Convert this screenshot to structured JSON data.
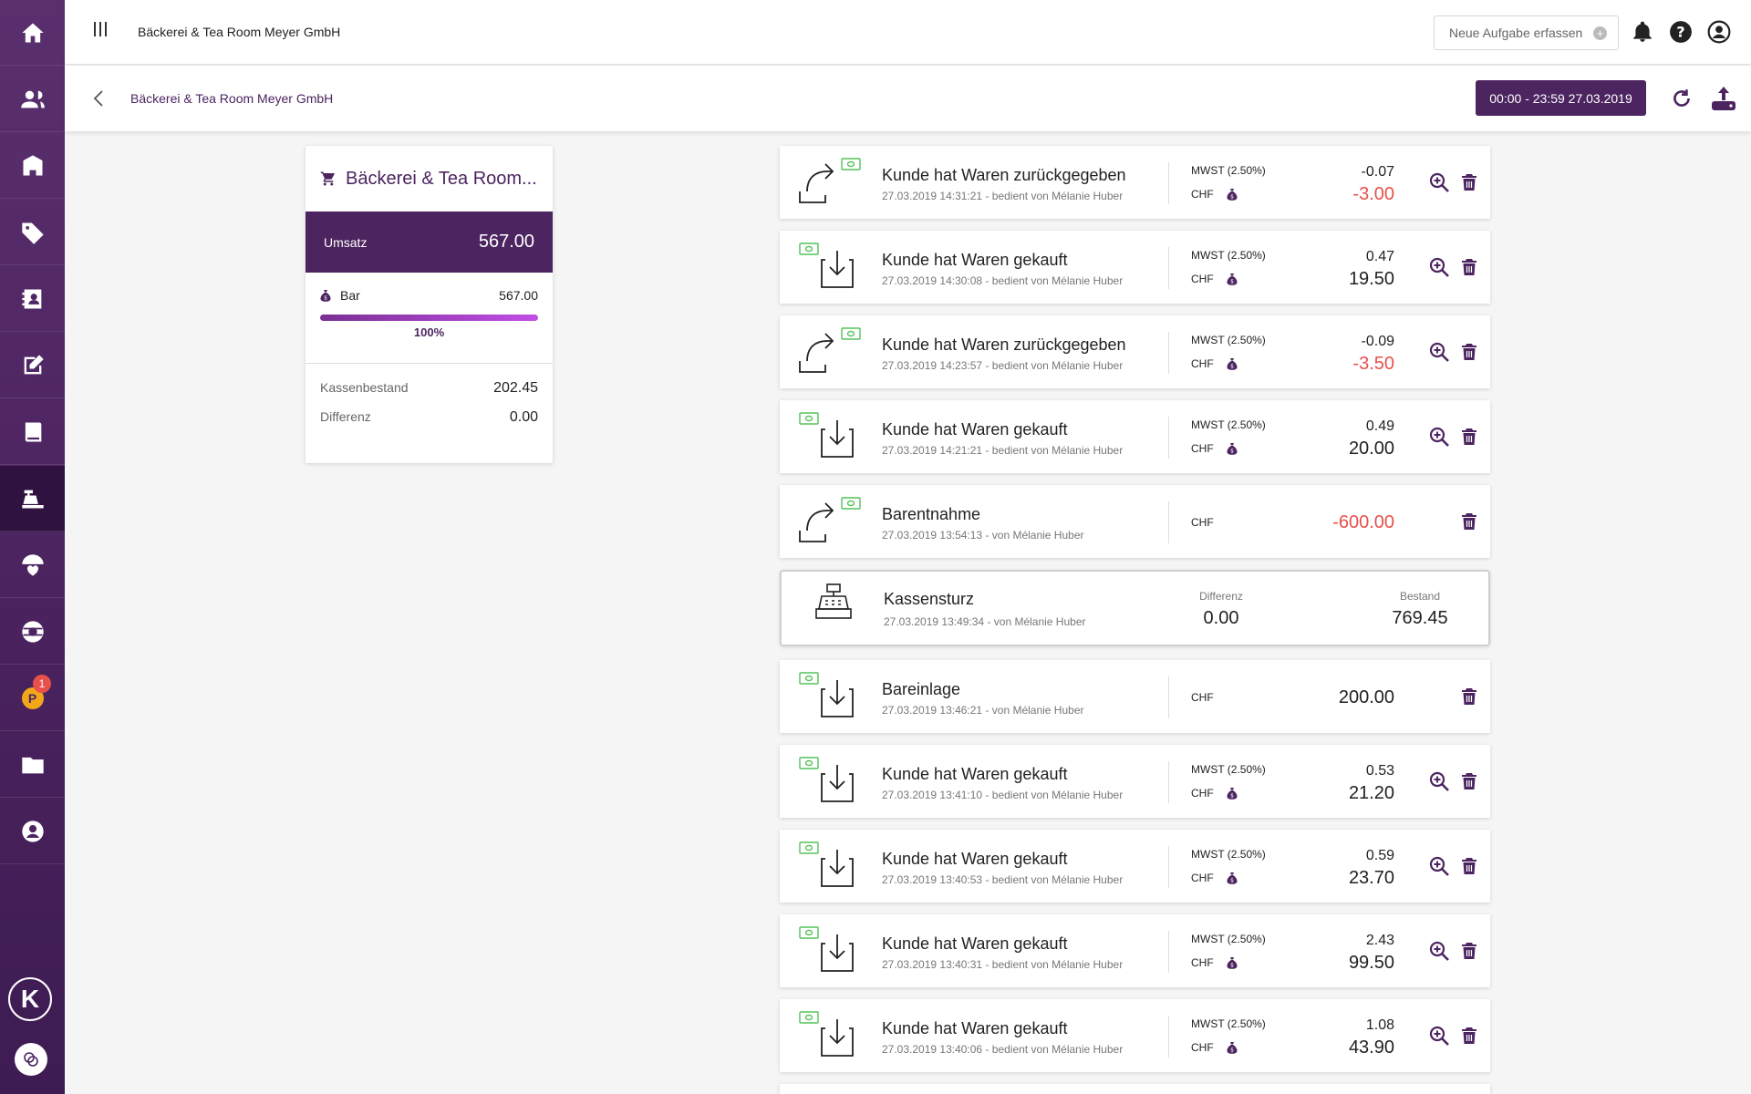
{
  "topbar": {
    "company": "Bäckerei & Tea Room Meyer GmbH",
    "task_placeholder": "Neue Aufgabe erfassen"
  },
  "sidebar": {
    "items": [
      {
        "icon": "home-icon"
      },
      {
        "icon": "users-icon"
      },
      {
        "icon": "building-icon"
      },
      {
        "icon": "tag-icon"
      },
      {
        "icon": "contacts-icon"
      },
      {
        "icon": "edit-icon"
      },
      {
        "icon": "book-icon"
      },
      {
        "icon": "cash-register-icon",
        "active": true
      },
      {
        "icon": "umbrella-heart-icon"
      },
      {
        "icon": "support-icon"
      },
      {
        "icon": "points-icon",
        "badge": "1",
        "coin": "P"
      },
      {
        "icon": "folder-icon"
      },
      {
        "icon": "account-icon"
      }
    ],
    "logo": "K"
  },
  "subbar": {
    "breadcrumb": "Bäckerei & Tea Room Meyer GmbH",
    "date_range": "00:00 - 23:59 27.03.2019"
  },
  "summary": {
    "title": "Bäckerei & Tea Room...",
    "umsatz_label": "Umsatz",
    "umsatz_value": "567.00",
    "bar_label": "Bar",
    "bar_value": "567.00",
    "bar_fill": 1.0,
    "bar_percent": "100%",
    "kassenbestand_label": "Kassenbestand",
    "kassenbestand_value": "202.45",
    "differenz_label": "Differenz",
    "differenz_value": "0.00"
  },
  "transactions": [
    {
      "kind": "return",
      "title": "Kunde hat Waren zurückgegeben",
      "sub": "27.03.2019 14:31:21 - bedient von Mélanie Huber",
      "mwst": "MWST (2.50%)",
      "currency": "CHF",
      "tax": "-0.07",
      "amount": "-3.00",
      "negative": true,
      "zoom": true
    },
    {
      "kind": "purchase",
      "title": "Kunde hat Waren gekauft",
      "sub": "27.03.2019 14:30:08 - bedient von Mélanie Huber",
      "mwst": "MWST (2.50%)",
      "currency": "CHF",
      "tax": "0.47",
      "amount": "19.50",
      "negative": false,
      "zoom": true
    },
    {
      "kind": "return",
      "title": "Kunde hat Waren zurückgegeben",
      "sub": "27.03.2019 14:23:57 - bedient von Mélanie Huber",
      "mwst": "MWST (2.50%)",
      "currency": "CHF",
      "tax": "-0.09",
      "amount": "-3.50",
      "negative": true,
      "zoom": true
    },
    {
      "kind": "purchase",
      "title": "Kunde hat Waren gekauft",
      "sub": "27.03.2019 14:21:21 - bedient von Mélanie Huber",
      "mwst": "MWST (2.50%)",
      "currency": "CHF",
      "tax": "0.49",
      "amount": "20.00",
      "negative": false,
      "zoom": true
    },
    {
      "kind": "return",
      "title": "Barentnahme",
      "sub": "27.03.2019 13:54:13 - von Mélanie Huber",
      "mwst": "",
      "currency": "CHF",
      "tax": "",
      "amount": "-600.00",
      "negative": true,
      "zoom": false
    }
  ],
  "kassensturz": {
    "title": "Kassensturz",
    "sub": "27.03.2019 13:49:34 - von Mélanie Huber",
    "diff_label": "Differenz",
    "diff_value": "0.00",
    "bestand_label": "Bestand",
    "bestand_value": "769.45"
  },
  "transactions_after": [
    {
      "kind": "purchase",
      "title": "Bareinlage",
      "sub": "27.03.2019 13:46:21 - von Mélanie Huber",
      "mwst": "",
      "currency": "CHF",
      "tax": "",
      "amount": "200.00",
      "negative": false,
      "zoom": false
    },
    {
      "kind": "purchase",
      "title": "Kunde hat Waren gekauft",
      "sub": "27.03.2019 13:41:10 - bedient von Mélanie Huber",
      "mwst": "MWST (2.50%)",
      "currency": "CHF",
      "tax": "0.53",
      "amount": "21.20",
      "negative": false,
      "zoom": true
    },
    {
      "kind": "purchase",
      "title": "Kunde hat Waren gekauft",
      "sub": "27.03.2019 13:40:53 - bedient von Mélanie Huber",
      "mwst": "MWST (2.50%)",
      "currency": "CHF",
      "tax": "0.59",
      "amount": "23.70",
      "negative": false,
      "zoom": true
    },
    {
      "kind": "purchase",
      "title": "Kunde hat Waren gekauft",
      "sub": "27.03.2019 13:40:31 - bedient von Mélanie Huber",
      "mwst": "MWST (2.50%)",
      "currency": "CHF",
      "tax": "2.43",
      "amount": "99.50",
      "negative": false,
      "zoom": true
    },
    {
      "kind": "purchase",
      "title": "Kunde hat Waren gekauft",
      "sub": "27.03.2019 13:40:06 - bedient von Mélanie Huber",
      "mwst": "MWST (2.50%)",
      "currency": "CHF",
      "tax": "1.08",
      "amount": "43.90",
      "negative": false,
      "zoom": true
    }
  ],
  "colors": {
    "brand": "#4c2460",
    "negative": "#e8504b",
    "cash_green": "#4caf50"
  }
}
